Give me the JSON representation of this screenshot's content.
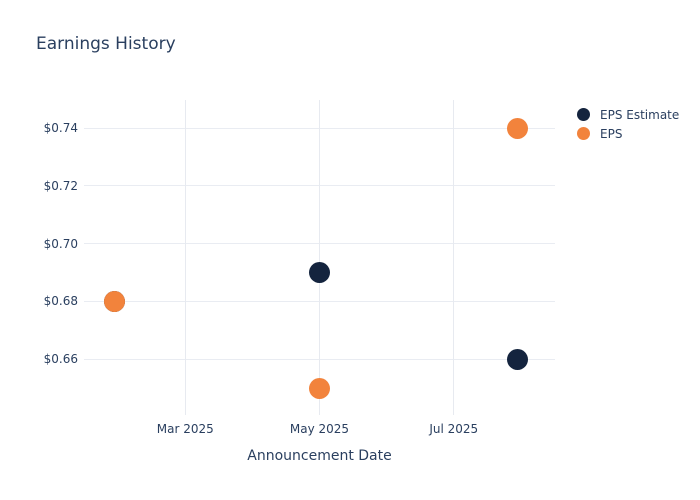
{
  "title": "Earnings History",
  "colors": {
    "eps_estimate": "#14243e",
    "eps": "#f2833c",
    "text": "#2a3f5f",
    "grid_horizontal": "#e9ecf2",
    "grid_vertical": "#e7eaf0",
    "background": "#ffffff"
  },
  "legend": {
    "items": [
      {
        "label": "EPS Estimate"
      },
      {
        "label": "EPS"
      }
    ]
  },
  "chart_data": {
    "type": "scatter",
    "title": "Earnings History",
    "xlabel": "Announcement Date",
    "ylabel": "",
    "grid": true,
    "legend_position": "right",
    "marker_size_px": 21,
    "x_axis": {
      "type": "date",
      "range": [
        "2025-01-14",
        "2025-08-16"
      ],
      "ticks": [
        {
          "label": "Mar 2025",
          "date": "2025-03-01"
        },
        {
          "label": "May 2025",
          "date": "2025-05-01"
        },
        {
          "label": "Jul 2025",
          "date": "2025-07-01"
        }
      ]
    },
    "y_axis": {
      "range": [
        0.6407,
        0.7497
      ],
      "ticks": [
        {
          "label": "$0.74",
          "value": 0.74
        },
        {
          "label": "$0.72",
          "value": 0.72
        },
        {
          "label": "$0.70",
          "value": 0.7
        },
        {
          "label": "$0.68",
          "value": 0.68
        },
        {
          "label": "$0.66",
          "value": 0.66
        }
      ]
    },
    "series": [
      {
        "name": "EPS Estimate",
        "color": "#14243e",
        "points": [
          {
            "date": "2025-01-28",
            "value": 0.68
          },
          {
            "date": "2025-05-01",
            "value": 0.69
          },
          {
            "date": "2025-07-30",
            "value": 0.66
          }
        ]
      },
      {
        "name": "EPS",
        "color": "#f2833c",
        "points": [
          {
            "date": "2025-01-28",
            "value": 0.68
          },
          {
            "date": "2025-05-01",
            "value": 0.65
          },
          {
            "date": "2025-07-30",
            "value": 0.74
          }
        ]
      }
    ]
  }
}
